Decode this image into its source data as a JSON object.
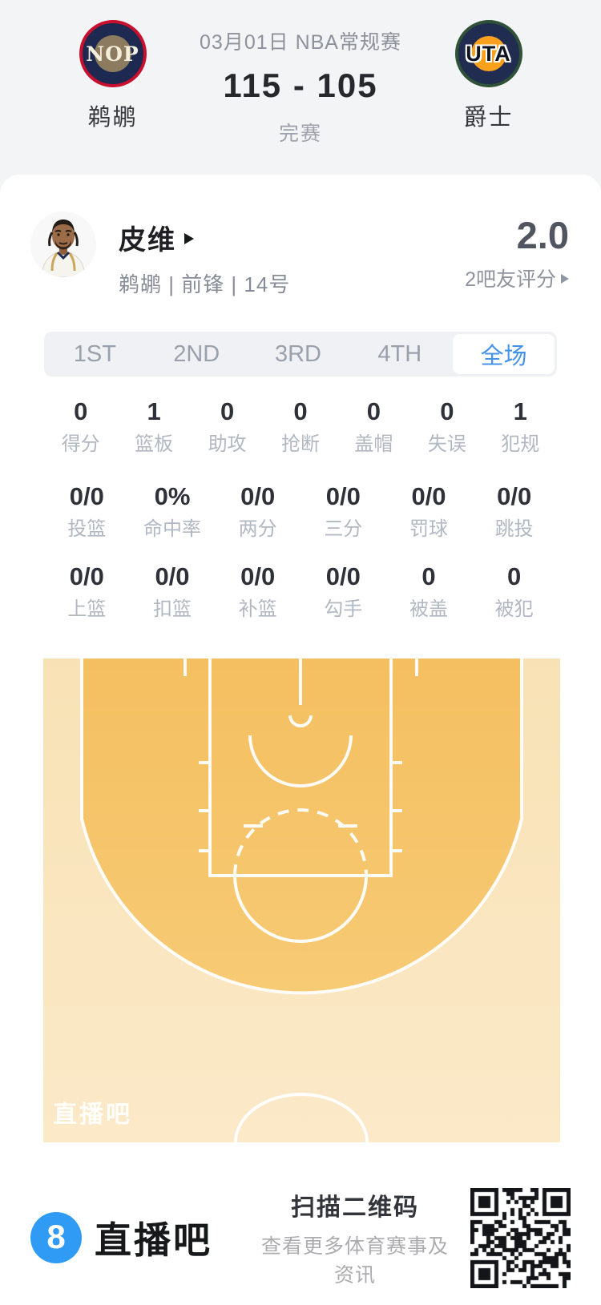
{
  "scoreboard": {
    "match_label": "03月01日 NBA常规赛",
    "score": "115 - 105",
    "status": "完赛",
    "home": {
      "abbr": "NOP",
      "name": "鹈鹕"
    },
    "away": {
      "abbr": "UTA",
      "name": "爵士"
    }
  },
  "player": {
    "name": "皮维",
    "info": "鹈鹕 | 前锋 | 14号",
    "rating": "2.0",
    "rating_source": "2吧友评分"
  },
  "tabs": [
    {
      "label": "1ST",
      "active": false
    },
    {
      "label": "2ND",
      "active": false
    },
    {
      "label": "3RD",
      "active": false
    },
    {
      "label": "4TH",
      "active": false
    },
    {
      "label": "全场",
      "active": true
    }
  ],
  "stats": {
    "row1": [
      {
        "value": "0",
        "label": "得分"
      },
      {
        "value": "1",
        "label": "篮板"
      },
      {
        "value": "0",
        "label": "助攻"
      },
      {
        "value": "0",
        "label": "抢断"
      },
      {
        "value": "0",
        "label": "盖帽"
      },
      {
        "value": "0",
        "label": "失误"
      },
      {
        "value": "1",
        "label": "犯规"
      }
    ],
    "row2": [
      {
        "value": "0/0",
        "label": "投篮"
      },
      {
        "value": "0%",
        "label": "命中率"
      },
      {
        "value": "0/0",
        "label": "两分"
      },
      {
        "value": "0/0",
        "label": "三分"
      },
      {
        "value": "0/0",
        "label": "罚球"
      },
      {
        "value": "0/0",
        "label": "跳投"
      }
    ],
    "row3": [
      {
        "value": "0/0",
        "label": "上篮"
      },
      {
        "value": "0/0",
        "label": "扣篮"
      },
      {
        "value": "0/0",
        "label": "补篮"
      },
      {
        "value": "0/0",
        "label": "勾手"
      },
      {
        "value": "0",
        "label": "被盖"
      },
      {
        "value": "0",
        "label": "被犯"
      }
    ]
  },
  "court": {
    "watermark": "直播吧"
  },
  "footer": {
    "logo_glyph": "8",
    "brand": "直播吧",
    "qr_title": "扫描二维码",
    "qr_subtitle": "查看更多体育赛事及资讯"
  },
  "colors": {
    "accent_blue": "#4493EA",
    "header_bg": "#F3F4F6",
    "court_orange": "#F5C468",
    "court_cream": "#F9E5BE",
    "brand_blue": "#2F9BF5",
    "nop_navy": "#1D2951",
    "nop_red": "#C8102E",
    "uta_navy": "#202C50",
    "uta_green": "#2F5137",
    "uta_gold": "#F9A11D"
  }
}
